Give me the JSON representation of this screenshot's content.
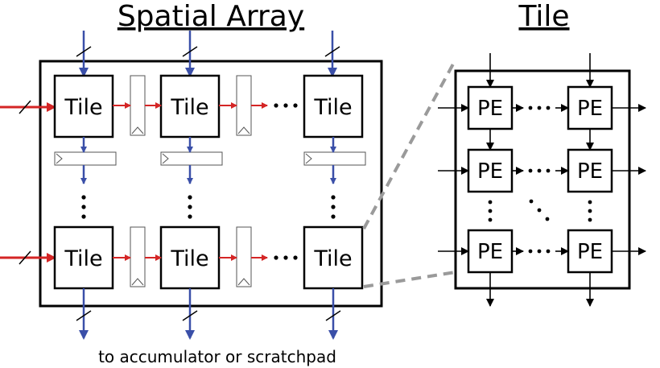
{
  "titles": {
    "spatial_array": "Spatial Array",
    "tile": "Tile"
  },
  "array_tiles": [
    "Tile",
    "Tile",
    "Tile",
    "Tile",
    "Tile",
    "Tile"
  ],
  "tile_pes": [
    "PE",
    "PE",
    "PE",
    "PE",
    "PE",
    "PE"
  ],
  "caption": "to accumulator or scratchpad",
  "colors": {
    "blue_arrows": "#3a4fa8",
    "red_arrows": "#d42525",
    "dashed_connector": "#9a9a9a"
  }
}
